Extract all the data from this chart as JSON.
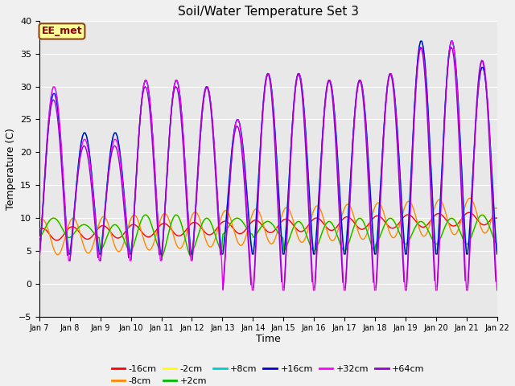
{
  "title": "Soil/Water Temperature Set 3",
  "xlabel": "Time",
  "ylabel": "Temperature (C)",
  "ylim": [
    -5,
    40
  ],
  "background_color": "#f0f0f0",
  "plot_bg_color": "#e8e8e8",
  "annotation_text": "EE_met",
  "annotation_bg": "#ffff99",
  "annotation_border": "#8B4513",
  "annotation_text_color": "#8B0000",
  "series_colors": {
    "-16cm": "#ff0000",
    "-8cm": "#ff8800",
    "-2cm": "#ffff00",
    "+2cm": "#00bb00",
    "+8cm": "#00cccc",
    "+16cm": "#0000cc",
    "+32cm": "#ff00ff",
    "+64cm": "#9900cc"
  },
  "xtick_labels": [
    "Jan 7",
    "Jan 8",
    "Jan 9",
    "Jan 10",
    "Jan 11",
    "Jan 12",
    "Jan 13",
    "Jan 14",
    "Jan 15",
    "Jan 16",
    "Jan 17",
    "Jan 18",
    "Jan 19",
    "Jan 20",
    "Jan 21",
    "Jan 22"
  ],
  "ytick_values": [
    -5,
    0,
    5,
    10,
    15,
    20,
    25,
    30,
    35,
    40
  ],
  "grid_color": "#ffffff",
  "line_width": 1.0,
  "figwidth": 6.4,
  "figheight": 4.8,
  "dpi": 100
}
